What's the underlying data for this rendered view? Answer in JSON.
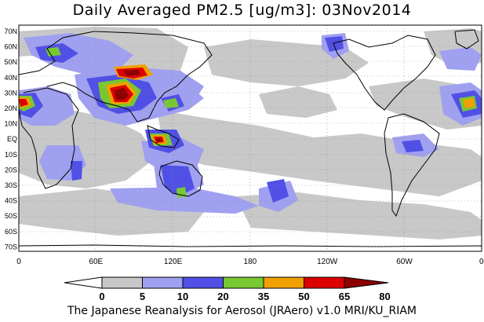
{
  "title": "Daily Averaged PM2.5 [ug/m3]: 03Nov2014",
  "footer": "The Japanese Reanalysis for Aerosol (JRAero) v1.0 MRI/KU_RIAM",
  "map": {
    "lat_labels": [
      "70N",
      "60N",
      "50N",
      "40N",
      "30N",
      "20N",
      "10N",
      "EQ",
      "10S",
      "20S",
      "30S",
      "40S",
      "50S",
      "60S",
      "70S"
    ],
    "lon_labels": [
      "0",
      "60E",
      "120E",
      "180",
      "120W",
      "60W",
      "0"
    ]
  },
  "colorbar": {
    "levels": [
      "0",
      "5",
      "10",
      "20",
      "35",
      "50",
      "65",
      "80"
    ],
    "colors": [
      "#ffffff",
      "#c8c8c8",
      "#a0a0f0",
      "#5050e6",
      "#78c832",
      "#f0a000",
      "#dc0000",
      "#8c0000"
    ]
  }
}
